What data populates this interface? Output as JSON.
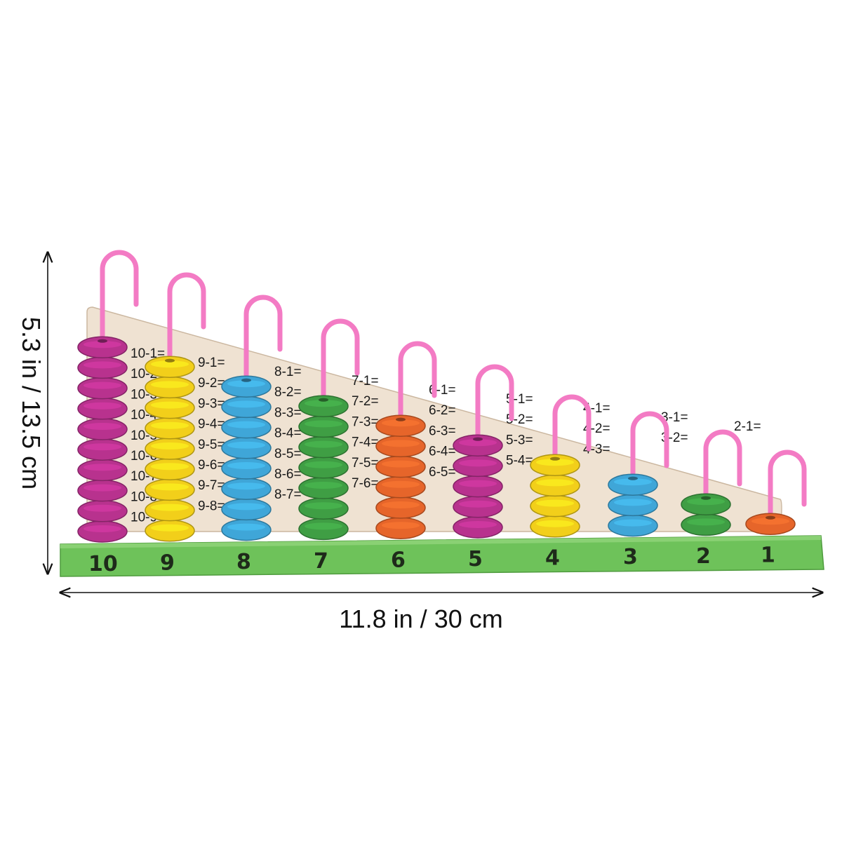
{
  "dimensions": {
    "width_label": "11.8 in / 30 cm",
    "height_label": "5.3 in / 13.5 cm"
  },
  "abacus": {
    "rod_numbers": [
      "10",
      "9",
      "8",
      "7",
      "6",
      "5",
      "4",
      "3",
      "2",
      "1"
    ],
    "bead_counts": [
      10,
      9,
      8,
      7,
      6,
      5,
      4,
      3,
      2,
      1
    ],
    "bead_colors": [
      "#b8328e",
      "#f2cf1a",
      "#3fa6d8",
      "#3f9e44",
      "#e6652a",
      "#b8328e",
      "#f2cf1a",
      "#3fa6d8",
      "#3f9e44",
      "#e6652a"
    ],
    "board_equations": [
      [
        "10-1=",
        "10-2=",
        "10-3=",
        "10-4=",
        "10-5=",
        "10-6=",
        "10-7=",
        "10-8=",
        "10-9="
      ],
      [
        "9-1=",
        "9-2=",
        "9-3=",
        "9-4=",
        "9-5=",
        "9-6=",
        "9-7=",
        "9-8="
      ],
      [
        "8-1=",
        "8-2=",
        "8-3=",
        "8-4=",
        "8-5=",
        "8-6=",
        "8-7="
      ],
      [
        "7-1=",
        "7-2=",
        "7-3=",
        "7-4=",
        "7-5=",
        "7-6="
      ],
      [
        "6-1=",
        "6-2=",
        "6-3=",
        "6-4=",
        "6-5="
      ],
      [
        "5-1=",
        "5-2=",
        "5-3=",
        "5-4="
      ],
      [
        "4-1=",
        "4-2=",
        "4-3="
      ],
      [
        "3-1=",
        "3-2="
      ],
      [
        "2-1="
      ]
    ],
    "base_color": "#6ec25a",
    "rod_color": "#f37bc4",
    "board_color": "#efe2d2"
  }
}
